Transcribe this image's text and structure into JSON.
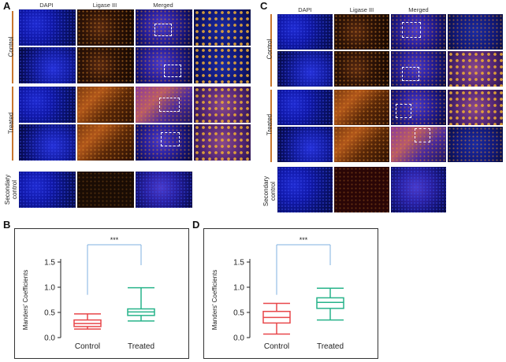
{
  "panels": {
    "A": {
      "letter": "A",
      "columns": [
        "DAPI",
        "Ligase III",
        "Merged"
      ],
      "rows": [
        "Control",
        "Treated"
      ],
      "secondary": "Secondary\ncontrol"
    },
    "C": {
      "letter": "C",
      "columns": [
        "DAPI",
        "Ligase III",
        "Merged"
      ],
      "rows": [
        "Control",
        "Treated"
      ],
      "secondary": "Secondary\ncontrol"
    },
    "B": {
      "letter": "B"
    },
    "D": {
      "letter": "D"
    }
  },
  "secondary_line1": "Secondary",
  "secondary_line2": "control",
  "colors": {
    "control": "#e8474a",
    "treated": "#27b38a",
    "bracket": "#7fb0e0",
    "accent_bar": "#c8762e"
  },
  "chart_data": [
    {
      "type": "box",
      "panel": "B",
      "categories": [
        "Control",
        "Treated"
      ],
      "ylabel": "Manders' Coefficients",
      "ylim": [
        0.0,
        1.5
      ],
      "yticks": [
        "0.0",
        "0.5",
        "1.0",
        "1.5"
      ],
      "significance": "***",
      "boxes": [
        {
          "name": "Control",
          "min": 0.17,
          "q1": 0.22,
          "median": 0.28,
          "q3": 0.35,
          "max": 0.47
        },
        {
          "name": "Treated",
          "min": 0.33,
          "q1": 0.44,
          "median": 0.51,
          "q3": 0.57,
          "max": 0.99
        }
      ]
    },
    {
      "type": "box",
      "panel": "D",
      "categories": [
        "Control",
        "Treated"
      ],
      "ylabel": "Manders' Coefficients",
      "ylim": [
        0.0,
        1.5
      ],
      "yticks": [
        "0.0",
        "0.5",
        "1.0",
        "1.5"
      ],
      "significance": "***",
      "boxes": [
        {
          "name": "Control",
          "min": 0.07,
          "q1": 0.29,
          "median": 0.4,
          "q3": 0.52,
          "max": 0.68
        },
        {
          "name": "Treated",
          "min": 0.35,
          "q1": 0.58,
          "median": 0.7,
          "q3": 0.79,
          "max": 0.98
        }
      ]
    }
  ]
}
